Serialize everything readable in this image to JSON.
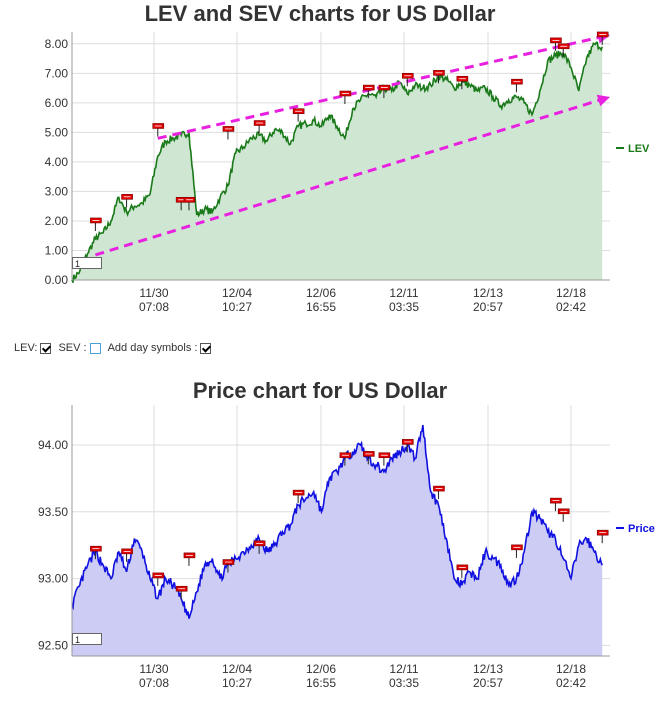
{
  "lev_chart": {
    "title": "LEV and SEV charts for US Dollar",
    "zoom_value": "1",
    "chart_data": {
      "type": "area",
      "title": "LEV and SEV charts for US Dollar",
      "ylim": [
        0,
        8.4
      ],
      "y_ticks": [
        "0.00",
        "1.00",
        "2.00",
        "3.00",
        "4.00",
        "5.00",
        "6.00",
        "7.00",
        "8.00"
      ],
      "x_ticks": [
        {
          "date": "11/30",
          "time": "07:08"
        },
        {
          "date": "12/04",
          "time": "10:27"
        },
        {
          "date": "12/06",
          "time": "16:55"
        },
        {
          "date": "12/11",
          "time": "03:35"
        },
        {
          "date": "12/13",
          "time": "20:57"
        },
        {
          "date": "12/18",
          "time": "02:42"
        }
      ],
      "legend": {
        "position": "right",
        "entries": [
          "LEV"
        ]
      },
      "grid": true,
      "series": [
        {
          "name": "LEV",
          "color": "#1a7a1a",
          "fill": "#cfe6d3",
          "x": [
            0,
            1,
            2,
            3,
            4,
            5,
            6,
            7,
            8,
            9,
            10,
            11,
            12,
            13,
            14,
            15,
            16,
            17,
            18,
            19,
            20,
            21,
            22,
            23,
            24,
            25,
            26,
            27,
            28,
            29,
            30,
            31,
            32,
            33,
            34,
            35,
            36,
            37,
            38,
            39,
            40,
            41,
            42,
            43,
            44,
            45,
            46,
            47,
            48,
            49,
            50,
            51,
            52,
            53,
            54,
            55,
            56,
            57,
            58,
            59,
            60,
            61,
            62,
            63,
            64,
            65,
            66,
            67,
            68
          ],
          "values": [
            0.0,
            0.3,
            0.9,
            1.4,
            1.6,
            2.0,
            2.8,
            2.3,
            2.5,
            2.6,
            2.9,
            4.2,
            4.7,
            4.8,
            4.9,
            5.0,
            2.2,
            2.4,
            2.3,
            2.8,
            3.2,
            4.3,
            4.5,
            4.8,
            4.9,
            4.7,
            5.1,
            5.0,
            4.6,
            5.2,
            5.3,
            5.4,
            5.2,
            5.6,
            5.2,
            4.8,
            5.8,
            6.1,
            6.3,
            6.2,
            6.5,
            6.4,
            6.7,
            6.3,
            6.6,
            6.5,
            6.6,
            6.9,
            6.8,
            6.5,
            6.7,
            6.6,
            6.4,
            6.5,
            6.2,
            5.9,
            6.1,
            6.2,
            6.0,
            5.6,
            6.4,
            7.4,
            7.6,
            7.7,
            7.2,
            6.4,
            7.5,
            8.0,
            7.9
          ],
          "sev_markers": [
            [
              3,
              2.0
            ],
            [
              7,
              2.8
            ],
            [
              11,
              5.2
            ],
            [
              14,
              2.7
            ],
            [
              15,
              2.7
            ],
            [
              20,
              5.1
            ],
            [
              24,
              5.3
            ],
            [
              29,
              5.7
            ],
            [
              35,
              6.3
            ],
            [
              38,
              6.5
            ],
            [
              40,
              6.5
            ],
            [
              43,
              6.9
            ],
            [
              47,
              7.0
            ],
            [
              50,
              6.8
            ],
            [
              57,
              6.7
            ],
            [
              62,
              8.1
            ],
            [
              63,
              7.9
            ],
            [
              68,
              8.3
            ]
          ]
        }
      ],
      "trendlines": [
        {
          "color": "#e820e0",
          "dashed": true,
          "points": [
            [
              11,
              4.8
            ],
            [
              69,
              8.3
            ]
          ]
        },
        {
          "color": "#e820e0",
          "dashed": true,
          "points": [
            [
              3,
              0.85
            ],
            [
              69,
              6.2
            ]
          ]
        }
      ]
    }
  },
  "controls": {
    "lev_label": "LEV:",
    "sev_label": "SEV :",
    "day_symbols_label": "Add day symbols :"
  },
  "price_chart": {
    "title": "Price chart for US Dollar",
    "zoom_value": "1",
    "chart_data": {
      "type": "area",
      "title": "Price chart for US Dollar",
      "ylim": [
        92.42,
        94.3
      ],
      "y_ticks": [
        "92.50",
        "93.00",
        "93.50",
        "94.00"
      ],
      "x_ticks": [
        {
          "date": "11/30",
          "time": "07:08"
        },
        {
          "date": "12/04",
          "time": "10:27"
        },
        {
          "date": "12/06",
          "time": "16:55"
        },
        {
          "date": "12/11",
          "time": "03:35"
        },
        {
          "date": "12/13",
          "time": "20:57"
        },
        {
          "date": "12/18",
          "time": "02:42"
        }
      ],
      "legend": {
        "position": "right",
        "entries": [
          "Price"
        ]
      },
      "grid": true,
      "series": [
        {
          "name": "Price",
          "color": "#1010e0",
          "fill": "#ccccf4",
          "x": [
            0,
            1,
            2,
            3,
            4,
            5,
            6,
            7,
            8,
            9,
            10,
            11,
            12,
            13,
            14,
            15,
            16,
            17,
            18,
            19,
            20,
            21,
            22,
            23,
            24,
            25,
            26,
            27,
            28,
            29,
            30,
            31,
            32,
            33,
            34,
            35,
            36,
            37,
            38,
            39,
            40,
            41,
            42,
            43,
            44,
            45,
            46,
            47,
            48,
            49,
            50,
            51,
            52,
            53,
            54,
            55,
            56,
            57,
            58,
            59,
            60,
            61,
            62,
            63,
            64,
            65,
            66,
            67,
            68
          ],
          "values": [
            92.8,
            92.95,
            93.1,
            93.2,
            93.1,
            93.0,
            93.2,
            93.05,
            93.3,
            93.2,
            93.0,
            92.85,
            93.0,
            92.95,
            92.85,
            92.7,
            92.9,
            93.1,
            93.15,
            93.0,
            93.1,
            93.15,
            93.2,
            93.25,
            93.3,
            93.2,
            93.25,
            93.35,
            93.4,
            93.55,
            93.6,
            93.65,
            93.5,
            93.75,
            93.8,
            93.9,
            93.95,
            94.0,
            93.9,
            93.85,
            93.8,
            93.9,
            93.95,
            94.0,
            93.9,
            94.15,
            93.65,
            93.55,
            93.3,
            93.0,
            92.95,
            93.05,
            93.0,
            93.2,
            93.15,
            93.1,
            92.95,
            93.0,
            93.2,
            93.5,
            93.45,
            93.35,
            93.3,
            93.15,
            93.0,
            93.25,
            93.3,
            93.2,
            93.1
          ],
          "sev_markers": [
            [
              3,
              93.22
            ],
            [
              7,
              93.2
            ],
            [
              11,
              93.02
            ],
            [
              14,
              92.92
            ],
            [
              15,
              93.17
            ],
            [
              20,
              93.12
            ],
            [
              24,
              93.26
            ],
            [
              29,
              93.64
            ],
            [
              35,
              93.92
            ],
            [
              38,
              93.93
            ],
            [
              40,
              93.92
            ],
            [
              43,
              94.02
            ],
            [
              47,
              93.67
            ],
            [
              50,
              93.08
            ],
            [
              57,
              93.23
            ],
            [
              62,
              93.58
            ],
            [
              63,
              93.5
            ],
            [
              68,
              93.34
            ]
          ]
        }
      ]
    }
  }
}
